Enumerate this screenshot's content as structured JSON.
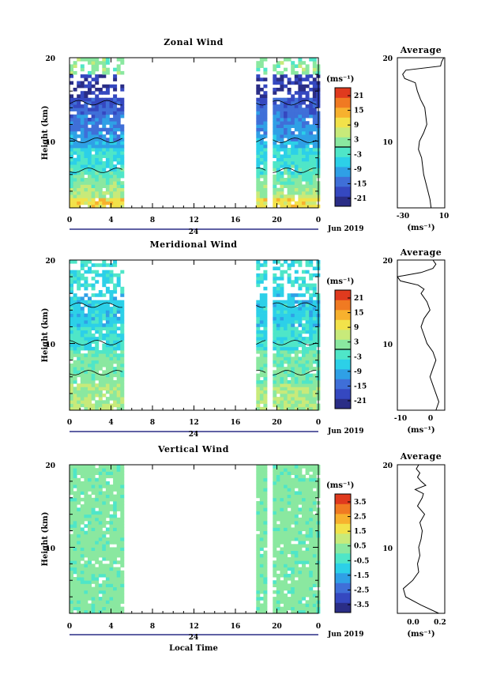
{
  "colors": {
    "palette": [
      "#2a2d86",
      "#3548c0",
      "#3f6fd8",
      "#2fa0e6",
      "#2cd0e8",
      "#4fe6c8",
      "#8ae8a0",
      "#c8ea7a",
      "#f2e24a",
      "#f7b12e",
      "#f07a22",
      "#e03a1e"
    ],
    "line": "#000000",
    "background": "#ffffff"
  },
  "footer": {
    "xlabel": "Local Time"
  },
  "chart_data": [
    {
      "type": "heatmap",
      "title": "Zonal Wind",
      "ylabel": "Height (km)",
      "ylim": [
        2,
        20
      ],
      "xlim": [
        0,
        24
      ],
      "yticks": [
        "10",
        "20"
      ],
      "xticks": [
        "0",
        "4",
        "8",
        "12",
        "16",
        "20",
        "0"
      ],
      "day_label": "24",
      "date_label": "Jun 2019",
      "data_intervals_hours": [
        [
          0,
          5.2
        ],
        [
          18.0,
          19.0
        ],
        [
          19.6,
          24.0
        ]
      ],
      "colorbar": {
        "unit": "(ms⁻¹)",
        "range": [
          -24,
          24
        ],
        "ticks": [
          "21",
          "15",
          "9",
          "3",
          "-3",
          "-9",
          "-15",
          "-21"
        ],
        "zero_line": true
      },
      "profile": {
        "title": "Average",
        "xlabel": "(ms⁻¹)",
        "xlim": [
          -35,
          10
        ],
        "xticks": [
          "-30",
          "10"
        ],
        "yticks": [
          "10",
          "20"
        ],
        "x": [
          -3,
          -4,
          -6,
          -8,
          -10,
          -11,
          -12,
          -15,
          -14,
          -10,
          -7,
          -8,
          -9,
          -13,
          -16,
          -17,
          -18,
          -28,
          -30,
          -27,
          6,
          7,
          9
        ],
        "y": [
          2,
          3,
          4,
          5,
          6,
          7,
          8,
          9,
          10,
          11,
          12,
          13,
          14,
          15,
          16,
          16.5,
          17,
          17.5,
          18,
          18.5,
          19,
          19.5,
          20
        ]
      }
    },
    {
      "type": "heatmap",
      "title": "Meridional Wind",
      "ylabel": "Height (km)",
      "ylim": [
        2,
        20
      ],
      "xlim": [
        0,
        24
      ],
      "yticks": [
        "10",
        "20"
      ],
      "xticks": [
        "0",
        "4",
        "8",
        "12",
        "16",
        "20",
        "0"
      ],
      "day_label": "24",
      "date_label": "Jun 2019",
      "data_intervals_hours": [
        [
          0,
          5.2
        ],
        [
          18.0,
          19.0
        ],
        [
          19.6,
          24.0
        ]
      ],
      "colorbar": {
        "unit": "(ms⁻¹)",
        "range": [
          -24,
          24
        ],
        "ticks": [
          "21",
          "15",
          "9",
          "3",
          "-3",
          "-9",
          "-15",
          "-21"
        ],
        "zero_line": true
      },
      "profile": {
        "title": "Average",
        "xlabel": "(ms⁻¹)",
        "xlim": [
          -12,
          4
        ],
        "xticks": [
          "-10",
          "0"
        ],
        "yticks": [
          "10",
          "20"
        ],
        "x": [
          1,
          2,
          1,
          0,
          -1,
          0,
          1,
          0,
          -2,
          -3,
          -4,
          -3,
          -1,
          -2,
          -4,
          -3,
          -5,
          -11,
          -12,
          -4,
          0,
          1,
          0
        ],
        "y": [
          2,
          3,
          4,
          5,
          6,
          7,
          8,
          9,
          10,
          11,
          12,
          13,
          14,
          15,
          16,
          16.5,
          17,
          17.5,
          18,
          18.5,
          19,
          19.5,
          20
        ]
      }
    },
    {
      "type": "heatmap",
      "title": "Vertical Wind",
      "ylabel": "Height (km)",
      "xlabel": "Local Time",
      "ylim": [
        2,
        20
      ],
      "xlim": [
        0,
        24
      ],
      "yticks": [
        "10",
        "20"
      ],
      "xticks": [
        "0",
        "4",
        "8",
        "12",
        "16",
        "20",
        "0"
      ],
      "day_label": "24",
      "date_label": "Jun 2019",
      "data_intervals_hours": [
        [
          0,
          5.2
        ],
        [
          18.0,
          19.0
        ],
        [
          19.6,
          24.0
        ]
      ],
      "colorbar": {
        "unit": "(ms⁻¹)",
        "range": [
          -4,
          4
        ],
        "ticks": [
          "3.5",
          "2.5",
          "1.5",
          "0.5",
          "-0.5",
          "-1.5",
          "-2.5",
          "-3.5"
        ],
        "zero_line": false
      },
      "profile": {
        "title": "Average",
        "xlabel": "(ms⁻¹)",
        "xlim": [
          -0.15,
          0.25
        ],
        "xticks": [
          "0.0",
          "0.2"
        ],
        "yticks": [
          "10",
          "20"
        ],
        "x": [
          0.2,
          0.05,
          -0.08,
          -0.1,
          -0.02,
          0.03,
          0.02,
          0.04,
          0.03,
          0.05,
          0.06,
          0.04,
          0.08,
          0.02,
          0.06,
          0.07,
          0.0,
          0.09,
          0.05,
          0.02,
          0.04,
          0.01,
          0.03
        ],
        "y": [
          2,
          3,
          4,
          5,
          6,
          7,
          8,
          9,
          10,
          11,
          12,
          13,
          14,
          15,
          16,
          16.5,
          17,
          17.5,
          18,
          18.5,
          19,
          19.5,
          20
        ]
      }
    }
  ]
}
